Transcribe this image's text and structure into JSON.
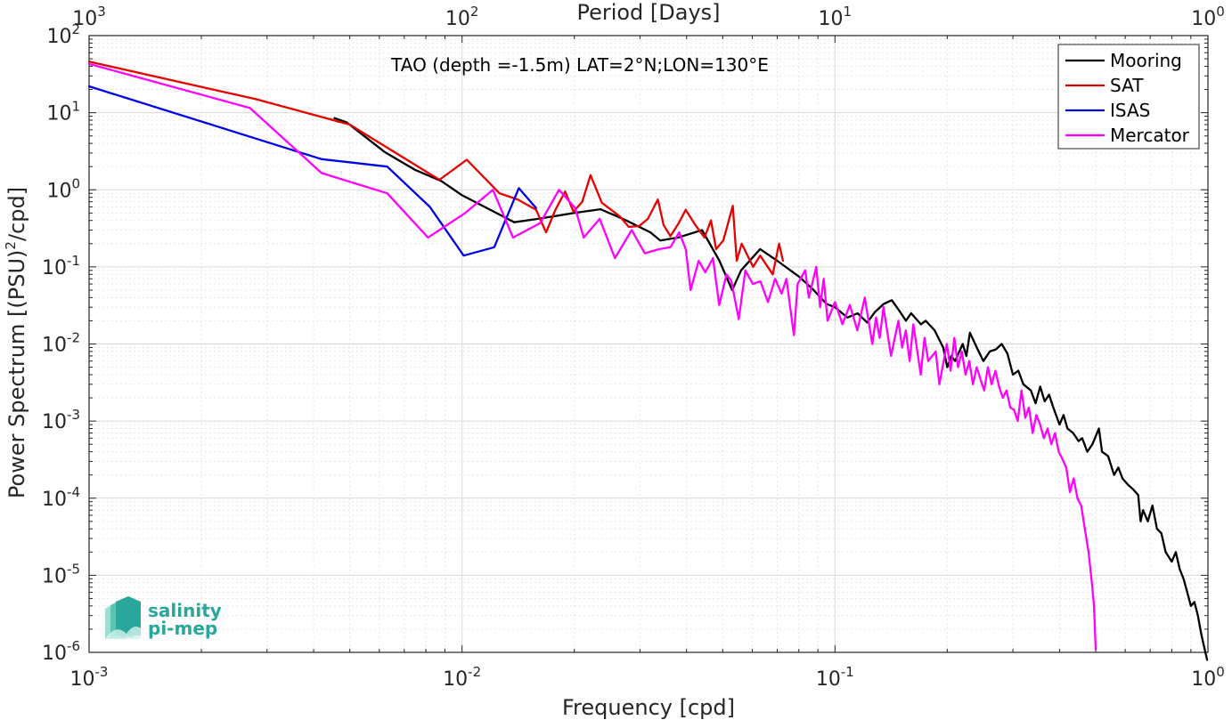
{
  "chart_data": {
    "type": "line",
    "title": "TAO (depth =-1.5m) LAT=2°N;LON=130°E",
    "xlabel": "Frequency [cpd]",
    "ylabel_main": "Power Spectrum [(PSU)",
    "ylabel_sup": "2",
    "ylabel_tail": "/cpd]",
    "top_xlabel": "Period [Days]",
    "x_scale": "log",
    "y_scale": "log",
    "xlim": [
      0.001,
      1
    ],
    "ylim": [
      1e-06,
      100
    ],
    "grid": true,
    "legend_position": "top-right",
    "x_ticks": [
      {
        "base": "10",
        "exp": "-3"
      },
      {
        "base": "10",
        "exp": "-2"
      },
      {
        "base": "10",
        "exp": "-1"
      },
      {
        "base": "10",
        "exp": "0"
      }
    ],
    "top_ticks": [
      {
        "base": "10",
        "exp": "3"
      },
      {
        "base": "10",
        "exp": "2"
      },
      {
        "base": "10",
        "exp": "1"
      },
      {
        "base": "10",
        "exp": "0"
      }
    ],
    "y_ticks": [
      {
        "base": "10",
        "exp": "-6"
      },
      {
        "base": "10",
        "exp": "-5"
      },
      {
        "base": "10",
        "exp": "-4"
      },
      {
        "base": "10",
        "exp": "-3"
      },
      {
        "base": "10",
        "exp": "-2"
      },
      {
        "base": "10",
        "exp": "-1"
      },
      {
        "base": "10",
        "exp": "0"
      },
      {
        "base": "10",
        "exp": "1"
      },
      {
        "base": "10",
        "exp": "2"
      }
    ],
    "series": [
      {
        "name": "Mooring",
        "color": "#000000",
        "points": [
          [
            0.00455,
            8.5
          ],
          [
            0.0049,
            7.5
          ],
          [
            0.0062,
            3.1
          ],
          [
            0.0075,
            1.8
          ],
          [
            0.0088,
            1.3
          ],
          [
            0.01,
            0.85
          ],
          [
            0.0115,
            0.6
          ],
          [
            0.0138,
            0.38
          ],
          [
            0.016,
            0.42
          ],
          [
            0.02,
            0.5
          ],
          [
            0.0235,
            0.56
          ],
          [
            0.027,
            0.42
          ],
          [
            0.032,
            0.28
          ],
          [
            0.034,
            0.22
          ],
          [
            0.038,
            0.24
          ],
          [
            0.044,
            0.3
          ],
          [
            0.049,
            0.12
          ],
          [
            0.053,
            0.05
          ],
          [
            0.056,
            0.09
          ],
          [
            0.063,
            0.17
          ],
          [
            0.07,
            0.12
          ],
          [
            0.08,
            0.075
          ],
          [
            0.087,
            0.052
          ],
          [
            0.095,
            0.033
          ],
          [
            0.1,
            0.03
          ],
          [
            0.108,
            0.022
          ],
          [
            0.115,
            0.025
          ],
          [
            0.122,
            0.019
          ],
          [
            0.128,
            0.026
          ],
          [
            0.135,
            0.033
          ],
          [
            0.142,
            0.037
          ],
          [
            0.148,
            0.028
          ],
          [
            0.155,
            0.02
          ],
          [
            0.16,
            0.025
          ],
          [
            0.17,
            0.018
          ],
          [
            0.175,
            0.02
          ],
          [
            0.185,
            0.015
          ],
          [
            0.195,
            0.009
          ],
          [
            0.2,
            0.005
          ],
          [
            0.205,
            0.007
          ],
          [
            0.21,
            0.006
          ],
          [
            0.22,
            0.01
          ],
          [
            0.225,
            0.007
          ],
          [
            0.23,
            0.014
          ],
          [
            0.24,
            0.009
          ],
          [
            0.25,
            0.006
          ],
          [
            0.26,
            0.008
          ],
          [
            0.27,
            0.0085
          ],
          [
            0.28,
            0.01
          ],
          [
            0.29,
            0.0075
          ],
          [
            0.3,
            0.004
          ],
          [
            0.31,
            0.0045
          ],
          [
            0.32,
            0.003
          ],
          [
            0.335,
            0.0025
          ],
          [
            0.345,
            0.0017
          ],
          [
            0.355,
            0.0028
          ],
          [
            0.365,
            0.0018
          ],
          [
            0.375,
            0.0022
          ],
          [
            0.385,
            0.0015
          ],
          [
            0.4,
            0.0009
          ],
          [
            0.41,
            0.0012
          ],
          [
            0.42,
            0.0008
          ],
          [
            0.435,
            0.0007
          ],
          [
            0.45,
            0.00055
          ],
          [
            0.46,
            0.0006
          ],
          [
            0.475,
            0.0004
          ],
          [
            0.49,
            0.0005
          ],
          [
            0.51,
            0.0008
          ],
          [
            0.52,
            0.0004
          ],
          [
            0.54,
            0.00035
          ],
          [
            0.56,
            0.0002
          ],
          [
            0.575,
            0.00025
          ],
          [
            0.59,
            0.00018
          ],
          [
            0.61,
            0.00015
          ],
          [
            0.63,
            0.00013
          ],
          [
            0.65,
            0.00011
          ],
          [
            0.66,
            5e-05
          ],
          [
            0.67,
            7e-05
          ],
          [
            0.69,
            5e-05
          ],
          [
            0.71,
            8e-05
          ],
          [
            0.73,
            4e-05
          ],
          [
            0.75,
            3.5e-05
          ],
          [
            0.77,
            2e-05
          ],
          [
            0.8,
            1.5e-05
          ],
          [
            0.82,
            2e-05
          ],
          [
            0.84,
            1.2e-05
          ],
          [
            0.86,
            9e-06
          ],
          [
            0.88,
            6e-06
          ],
          [
            0.9,
            4e-06
          ],
          [
            0.92,
            4.5e-06
          ],
          [
            0.94,
            3e-06
          ],
          [
            0.96,
            1.7e-06
          ],
          [
            0.98,
            1.1e-06
          ],
          [
            0.995,
            8e-07
          ]
        ]
      },
      {
        "name": "SAT",
        "color": "#e60000",
        "points": [
          [
            0.001,
            46
          ],
          [
            0.0028,
            15
          ],
          [
            0.005,
            7
          ],
          [
            0.0087,
            1.35
          ],
          [
            0.0103,
            2.45
          ],
          [
            0.0126,
            0.9
          ],
          [
            0.0141,
            0.75
          ],
          [
            0.0158,
            0.55
          ],
          [
            0.0168,
            0.28
          ],
          [
            0.0178,
            0.55
          ],
          [
            0.0189,
            0.95
          ],
          [
            0.0199,
            0.52
          ],
          [
            0.021,
            0.7
          ],
          [
            0.0221,
            1.55
          ],
          [
            0.0237,
            0.68
          ],
          [
            0.0251,
            0.55
          ],
          [
            0.0265,
            0.45
          ],
          [
            0.028,
            0.33
          ],
          [
            0.0299,
            0.34
          ],
          [
            0.0315,
            0.42
          ],
          [
            0.0335,
            0.75
          ],
          [
            0.0347,
            0.35
          ],
          [
            0.0362,
            0.25
          ],
          [
            0.0381,
            0.37
          ],
          [
            0.0398,
            0.55
          ],
          [
            0.0422,
            0.35
          ],
          [
            0.0447,
            0.24
          ],
          [
            0.0465,
            0.4
          ],
          [
            0.048,
            0.17
          ],
          [
            0.0502,
            0.22
          ],
          [
            0.0532,
            0.62
          ],
          [
            0.0545,
            0.12
          ],
          [
            0.0562,
            0.2
          ],
          [
            0.0603,
            0.1
          ],
          [
            0.063,
            0.14
          ],
          [
            0.0681,
            0.08
          ],
          [
            0.0708,
            0.2
          ],
          [
            0.0725,
            0.12
          ]
        ]
      },
      {
        "name": "ISAS",
        "color": "#0000e6",
        "points": [
          [
            0.001,
            22
          ],
          [
            0.0042,
            2.5
          ],
          [
            0.0063,
            2.0
          ],
          [
            0.0082,
            0.6
          ],
          [
            0.0101,
            0.14
          ],
          [
            0.0122,
            0.18
          ],
          [
            0.0142,
            1.05
          ],
          [
            0.0158,
            0.58
          ]
        ]
      },
      {
        "name": "Mercator",
        "color": "#ff00ff",
        "points": [
          [
            0.001,
            43
          ],
          [
            0.0027,
            11.5
          ],
          [
            0.0042,
            1.65
          ],
          [
            0.0063,
            0.9
          ],
          [
            0.0081,
            0.24
          ],
          [
            0.0102,
            0.5
          ],
          [
            0.0121,
            1.0
          ],
          [
            0.0137,
            0.24
          ],
          [
            0.0162,
            0.37
          ],
          [
            0.0182,
            1.0
          ],
          [
            0.0201,
            0.58
          ],
          [
            0.0212,
            0.24
          ],
          [
            0.0234,
            0.42
          ],
          [
            0.0257,
            0.13
          ],
          [
            0.0285,
            0.3
          ],
          [
            0.0309,
            0.15
          ],
          [
            0.0338,
            0.17
          ],
          [
            0.0362,
            0.18
          ],
          [
            0.0382,
            0.28
          ],
          [
            0.0398,
            0.17
          ],
          [
            0.041,
            0.05
          ],
          [
            0.0431,
            0.12
          ],
          [
            0.0449,
            0.085
          ],
          [
            0.0471,
            0.13
          ],
          [
            0.0489,
            0.032
          ],
          [
            0.0512,
            0.08
          ],
          [
            0.0527,
            0.066
          ],
          [
            0.0552,
            0.021
          ],
          [
            0.0575,
            0.09
          ],
          [
            0.0602,
            0.06
          ],
          [
            0.0631,
            0.065
          ],
          [
            0.0661,
            0.035
          ],
          [
            0.0691,
            0.07
          ],
          [
            0.0719,
            0.045
          ],
          [
            0.0741,
            0.07
          ],
          [
            0.0776,
            0.013
          ],
          [
            0.0794,
            0.06
          ],
          [
            0.0832,
            0.09
          ],
          [
            0.0851,
            0.04
          ],
          [
            0.0891,
            0.1
          ],
          [
            0.0912,
            0.03
          ],
          [
            0.0933,
            0.07
          ],
          [
            0.0955,
            0.02
          ],
          [
            0.1,
            0.035
          ],
          [
            0.1047,
            0.018
          ],
          [
            0.1096,
            0.032
          ],
          [
            0.1148,
            0.015
          ],
          [
            0.1202,
            0.04
          ],
          [
            0.1259,
            0.01
          ],
          [
            0.1288,
            0.022
          ],
          [
            0.1318,
            0.012
          ],
          [
            0.1349,
            0.03
          ],
          [
            0.1413,
            0.007
          ],
          [
            0.1479,
            0.02
          ],
          [
            0.1514,
            0.009
          ],
          [
            0.1549,
            0.015
          ],
          [
            0.1585,
            0.006
          ],
          [
            0.1622,
            0.018
          ],
          [
            0.1698,
            0.004
          ],
          [
            0.1738,
            0.012
          ],
          [
            0.1778,
            0.006
          ],
          [
            0.1862,
            0.008
          ],
          [
            0.1905,
            0.003
          ],
          [
            0.1995,
            0.01
          ],
          [
            0.2042,
            0.0045
          ],
          [
            0.2089,
            0.012
          ],
          [
            0.2138,
            0.005
          ],
          [
            0.2188,
            0.008
          ],
          [
            0.2239,
            0.004
          ],
          [
            0.2291,
            0.006
          ],
          [
            0.2344,
            0.003
          ],
          [
            0.2399,
            0.005
          ],
          [
            0.2455,
            0.0035
          ],
          [
            0.2512,
            0.0025
          ],
          [
            0.257,
            0.005
          ],
          [
            0.263,
            0.003
          ],
          [
            0.2692,
            0.0045
          ],
          [
            0.2754,
            0.0028
          ],
          [
            0.2818,
            0.002
          ],
          [
            0.2884,
            0.0025
          ],
          [
            0.2951,
            0.0015
          ],
          [
            0.302,
            0.0014
          ],
          [
            0.309,
            0.001
          ],
          [
            0.3162,
            0.0025
          ],
          [
            0.3236,
            0.0011
          ],
          [
            0.3311,
            0.0015
          ],
          [
            0.3388,
            0.0007
          ],
          [
            0.3467,
            0.0012
          ],
          [
            0.3548,
            0.0009
          ],
          [
            0.3631,
            0.0006
          ],
          [
            0.3715,
            0.0008
          ],
          [
            0.3802,
            0.0005
          ],
          [
            0.389,
            0.0007
          ],
          [
            0.3981,
            0.0004
          ],
          [
            0.4074,
            0.00032
          ],
          [
            0.4169,
            0.00025
          ],
          [
            0.4266,
            0.00012
          ],
          [
            0.4365,
            0.00018
          ],
          [
            0.4467,
            0.0001
          ],
          [
            0.4571,
            8e-05
          ],
          [
            0.4677,
            4e-05
          ],
          [
            0.4786,
            2e-05
          ],
          [
            0.4898,
            7e-06
          ],
          [
            0.495,
            4e-06
          ],
          [
            0.5,
            1.1e-06
          ]
        ]
      }
    ]
  },
  "logo": {
    "line1": "salinity",
    "line2": "pi-mep",
    "color": "#2aa79b"
  }
}
